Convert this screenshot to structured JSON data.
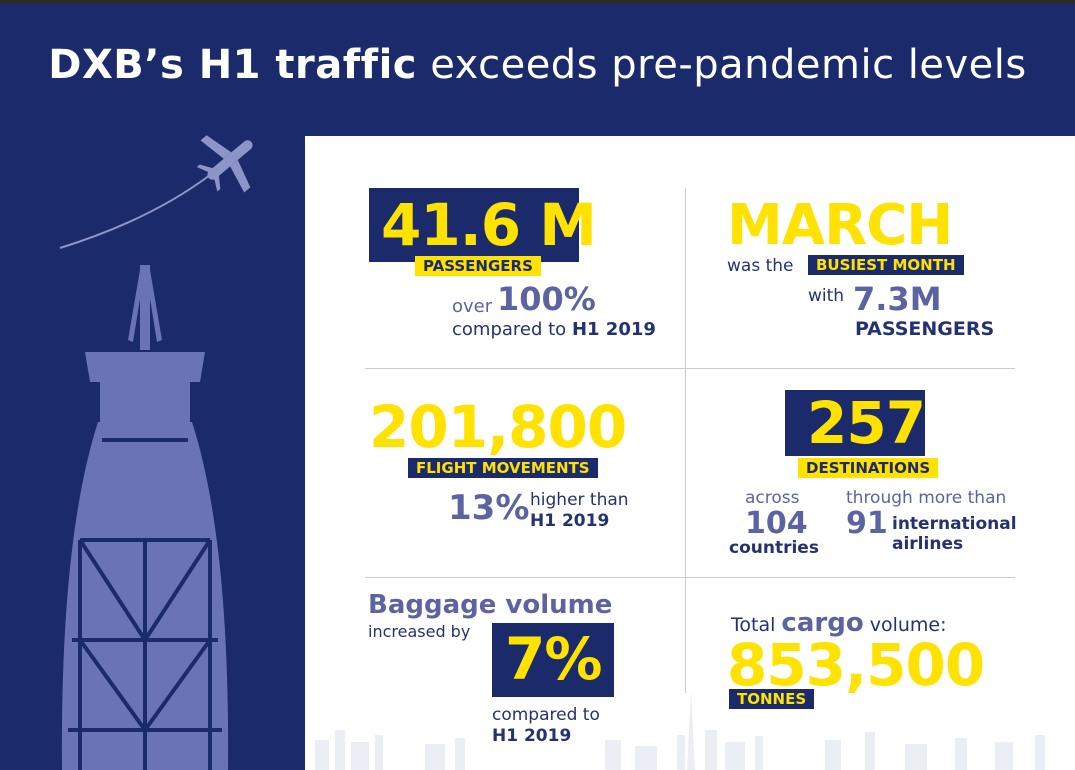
{
  "title": {
    "bold": "DXB’s H1 traffic",
    "rest": "exceeds pre-pandemic levels"
  },
  "stats": {
    "passengers": {
      "value": "41.6 M",
      "label": "PASSENGERS",
      "pre": "over",
      "pct": "100%",
      "note": "compared to",
      "note_bold": "H1 2019"
    },
    "busiest": {
      "month": "MARCH",
      "pre": "was the",
      "label": "BUSIEST MONTH",
      "with": "with",
      "value": "7.3M",
      "unit": "PASSENGERS"
    },
    "flights": {
      "value": "201,800",
      "label": "FLIGHT MOVEMENTS",
      "pct": "13%",
      "note": "higher than",
      "note_bold": "H1 2019"
    },
    "destinations": {
      "value": "257",
      "label": "DESTINATIONS",
      "across": "across",
      "countries_num": "104",
      "countries": "countries",
      "through": "through more than",
      "airlines_num": "91",
      "airlines_1": "international",
      "airlines_2": "airlines"
    },
    "baggage": {
      "title": "Baggage volume",
      "sub": "increased by",
      "pct": "7%",
      "note": "compared to",
      "note_bold": "H1 2019"
    },
    "cargo": {
      "pre": "Total",
      "word": "cargo",
      "post": "volume:",
      "value": "853,500",
      "unit": "TONNES"
    }
  },
  "colors": {
    "navy": "#1b2a6b",
    "yellow": "#ffe200",
    "illustration": "#6a74b5",
    "muted_text": "#5b63a0"
  },
  "icons": [
    "airplane-icon",
    "control-tower-illustration",
    "city-skyline-illustration"
  ]
}
